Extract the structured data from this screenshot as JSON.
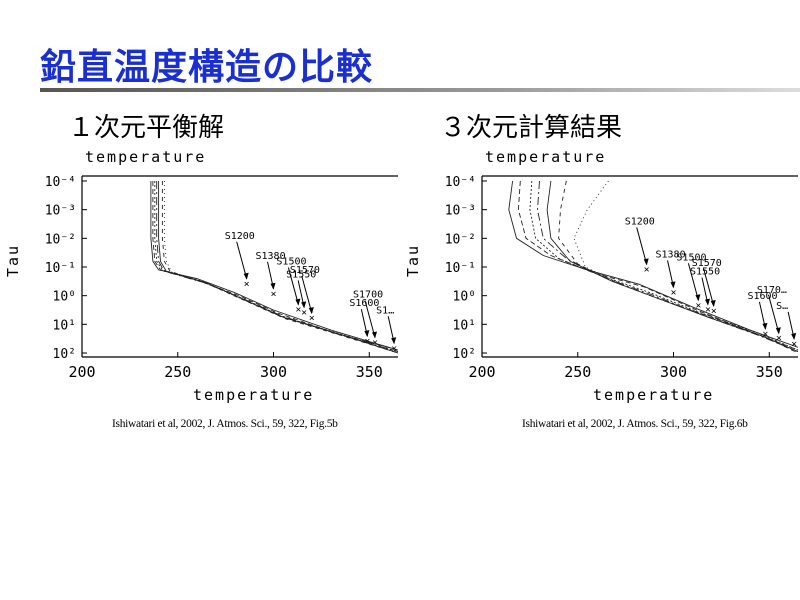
{
  "slide": {
    "title": "鉛直温度構造の比較"
  },
  "panels": [
    {
      "heading": "１次元平衡解",
      "citation": "Ishiwatari et al, 2002, J. Atmos. Sci., 59, 322, Fig.5b"
    },
    {
      "heading": "３次元計算結果",
      "citation": "Ishiwatari et al, 2002, J. Atmos. Sci., 59, 322, Fig.6b"
    }
  ],
  "chart_data": [
    {
      "type": "line",
      "title": "temperature",
      "xlabel": "temperature",
      "ylabel": "Tau",
      "xlim": [
        200,
        365
      ],
      "ylim_log10": [
        -4,
        2
      ],
      "y_inverted": true,
      "x_ticks": [
        "200",
        "250",
        "300",
        "350"
      ],
      "y_ticks": [
        "10⁻⁴",
        "10⁻³",
        "10⁻²",
        "10⁻¹",
        "10⁰",
        "10¹",
        "10²"
      ],
      "series": [
        {
          "name": "S1200",
          "x": [
            236,
            236,
            237,
            240,
            260,
            280,
            300,
            330,
            365
          ],
          "logtau": [
            -4,
            -2,
            -1.2,
            -0.9,
            -0.6,
            -0.1,
            0.5,
            1.2,
            1.9
          ]
        },
        {
          "name": "S1380",
          "x": [
            237,
            237,
            238,
            241,
            262,
            282,
            302,
            332,
            365
          ],
          "logtau": [
            -4,
            -2,
            -1.2,
            -0.9,
            -0.5,
            0,
            0.6,
            1.3,
            1.9
          ]
        },
        {
          "name": "S1500",
          "x": [
            238,
            238,
            239,
            242,
            263,
            283,
            303,
            333,
            365
          ],
          "logtau": [
            -4,
            -2,
            -1.2,
            -0.9,
            -0.5,
            0.1,
            0.7,
            1.3,
            1.95
          ]
        },
        {
          "name": "S1550",
          "x": [
            239,
            239,
            240,
            243,
            264,
            284,
            304,
            334,
            365
          ],
          "logtau": [
            -4,
            -2,
            -1.2,
            -0.85,
            -0.45,
            0.1,
            0.7,
            1.35,
            1.95
          ]
        },
        {
          "name": "S1570",
          "x": [
            240,
            240,
            241,
            244,
            265,
            285,
            305,
            335,
            365
          ],
          "logtau": [
            -4,
            -2,
            -1.2,
            -0.85,
            -0.45,
            0.15,
            0.75,
            1.35,
            2
          ]
        },
        {
          "name": "S1600",
          "x": [
            242,
            242,
            243,
            246,
            266,
            286,
            306,
            336,
            365
          ],
          "logtau": [
            -4,
            -2,
            -1.2,
            -0.85,
            -0.4,
            0.2,
            0.8,
            1.4,
            2
          ]
        },
        {
          "name": "S1700",
          "x": [
            243,
            243,
            244,
            247,
            267,
            287,
            307,
            337,
            365
          ],
          "logtau": [
            -4,
            -2,
            -1.2,
            -0.8,
            -0.4,
            0.2,
            0.8,
            1.4,
            2
          ]
        }
      ],
      "markers": [
        {
          "label": "S1200",
          "x": 286,
          "logtau": -0.45
        },
        {
          "label": "S1380",
          "x": 300,
          "logtau": -0.1
        },
        {
          "label": "S1500",
          "x": 313,
          "logtau": 0.45
        },
        {
          "label": "S1550",
          "x": 316,
          "logtau": 0.55
        },
        {
          "label": "S1570",
          "x": 320,
          "logtau": 0.75
        },
        {
          "label": "S1600",
          "x": 349,
          "logtau": 1.55
        },
        {
          "label": "S1700",
          "x": 353,
          "logtau": 1.6
        },
        {
          "label": "S1…",
          "x": 363,
          "logtau": 1.8
        }
      ]
    },
    {
      "type": "line",
      "title": "temperature",
      "xlabel": "temperature",
      "ylabel": "Tau",
      "xlim": [
        200,
        365
      ],
      "ylim_log10": [
        -4,
        2
      ],
      "y_inverted": true,
      "x_ticks": [
        "200",
        "250",
        "300",
        "350"
      ],
      "y_ticks": [
        "10⁻⁴",
        "10⁻³",
        "10⁻²",
        "10⁻¹",
        "10⁰",
        "10¹",
        "10²"
      ],
      "series": [
        {
          "name": "S1200",
          "x": [
            216,
            214,
            218,
            232,
            255,
            282,
            310,
            340,
            365
          ],
          "logtau": [
            -4,
            -3,
            -2,
            -1.4,
            -0.9,
            -0.4,
            0.4,
            1.2,
            1.8
          ]
        },
        {
          "name": "S1380",
          "x": [
            220,
            219,
            223,
            236,
            258,
            285,
            312,
            342,
            365
          ],
          "logtau": [
            -4,
            -3,
            -2,
            -1.4,
            -0.8,
            -0.3,
            0.5,
            1.3,
            1.9
          ]
        },
        {
          "name": "S1500",
          "x": [
            226,
            225,
            228,
            240,
            262,
            288,
            314,
            344,
            365
          ],
          "logtau": [
            -4,
            -3,
            -2,
            -1.3,
            -0.7,
            -0.1,
            0.6,
            1.3,
            1.9
          ]
        },
        {
          "name": "S1550",
          "x": [
            230,
            229,
            232,
            244,
            265,
            290,
            316,
            345,
            365
          ],
          "logtau": [
            -4,
            -3,
            -2,
            -1.3,
            -0.6,
            0,
            0.7,
            1.4,
            1.95
          ]
        },
        {
          "name": "S1570",
          "x": [
            236,
            234,
            236,
            246,
            268,
            292,
            318,
            346,
            365
          ],
          "logtau": [
            -4,
            -3,
            -2,
            -1.2,
            -0.5,
            0.1,
            0.75,
            1.4,
            1.95
          ]
        },
        {
          "name": "S1600",
          "x": [
            244,
            241,
            240,
            250,
            272,
            296,
            322,
            348,
            365
          ],
          "logtau": [
            -4,
            -3,
            -2,
            -1.1,
            -0.4,
            0.2,
            0.8,
            1.45,
            2
          ]
        },
        {
          "name": "S1700",
          "x": [
            266,
            255,
            248,
            254,
            276,
            300,
            326,
            350,
            365
          ],
          "logtau": [
            -4,
            -3,
            -2,
            -1,
            -0.3,
            0.3,
            0.9,
            1.5,
            2
          ]
        }
      ],
      "markers": [
        {
          "label": "S1200",
          "x": 286,
          "logtau": -0.95
        },
        {
          "label": "S1380",
          "x": 300,
          "logtau": -0.15
        },
        {
          "label": "S1500",
          "x": 313,
          "logtau": 0.3
        },
        {
          "label": "S1550",
          "x": 318,
          "logtau": 0.45
        },
        {
          "label": "S1570",
          "x": 321,
          "logtau": 0.5
        },
        {
          "label": "S1600",
          "x": 348,
          "logtau": 1.3
        },
        {
          "label": "S170…",
          "x": 355,
          "logtau": 1.45
        },
        {
          "label": "S…",
          "x": 363,
          "logtau": 1.65
        }
      ]
    }
  ]
}
